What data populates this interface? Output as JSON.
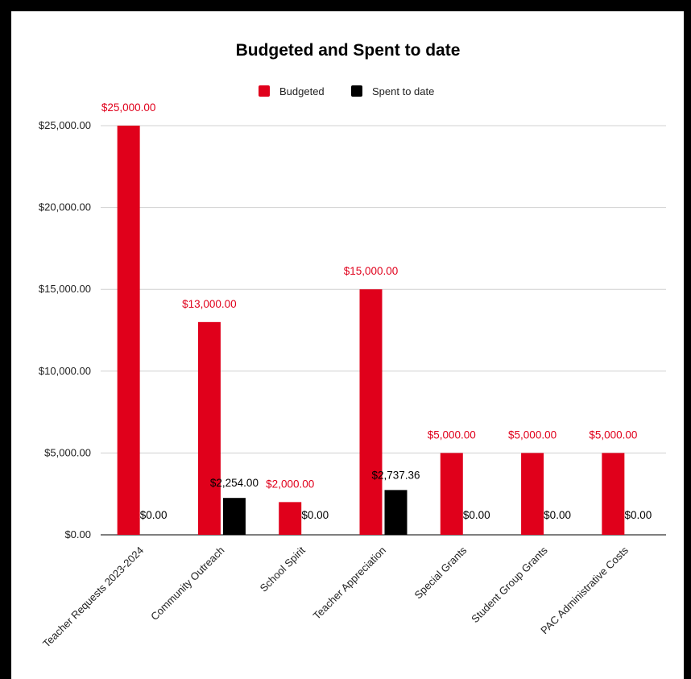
{
  "chart_data": {
    "type": "bar",
    "title": "Budgeted and Spent to date",
    "xlabel": "",
    "ylabel": "",
    "categories": [
      "Teacher Requests 2023-2024",
      "Community Outreach",
      "School Spirit",
      "Teacher Appreciation",
      "Special Grants",
      "Student Group Grants",
      "PAC Administrative Costs"
    ],
    "series": [
      {
        "name": "Budgeted",
        "color": "#e0001b",
        "values": [
          25000,
          13000,
          2000,
          15000,
          5000,
          5000,
          5000
        ],
        "labels": [
          "$25,000.00",
          "$13,000.00",
          "$2,000.00",
          "$15,000.00",
          "$5,000.00",
          "$5,000.00",
          "$5,000.00"
        ],
        "label_color": "#e0001b"
      },
      {
        "name": "Spent to date",
        "color": "#000000",
        "values": [
          0,
          2254,
          0,
          2737.36,
          0,
          0,
          0
        ],
        "labels": [
          "$0.00",
          "$2,254.00",
          "$0.00",
          "$2,737.36",
          "$0.00",
          "$0.00",
          "$0.00"
        ],
        "label_color": "#000000"
      }
    ],
    "ylim": [
      0,
      25000
    ],
    "yticks": [
      0,
      5000,
      10000,
      15000,
      20000,
      25000
    ],
    "ytick_labels": [
      "$0.00",
      "$5,000.00",
      "$10,000.00",
      "$15,000.00",
      "$20,000.00",
      "$25,000.00"
    ],
    "grid": true,
    "legend_position": "top-center"
  }
}
